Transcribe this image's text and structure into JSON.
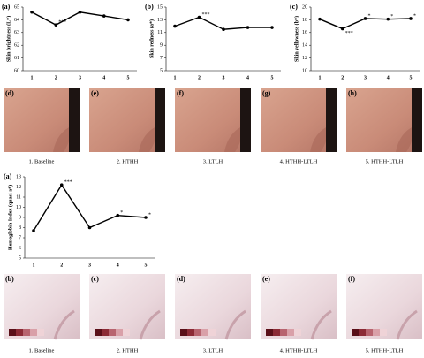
{
  "chart_data": [
    {
      "type": "line",
      "panel": "(a)",
      "ylabel": "Skin brightness (L*)",
      "categories": [
        "1",
        "2",
        "3",
        "4",
        "5"
      ],
      "values": [
        64.6,
        63.6,
        64.6,
        64.3,
        64.0
      ],
      "point_labels": [
        null,
        "***",
        null,
        null,
        null
      ],
      "ylim": [
        60,
        65
      ],
      "yticks": [
        60,
        61,
        62,
        63,
        64,
        65
      ],
      "color": "#000000"
    },
    {
      "type": "line",
      "panel": "(b)",
      "ylabel": "Skin redness (a*)",
      "categories": [
        "1",
        "2",
        "3",
        "4",
        "5"
      ],
      "values": [
        12.0,
        13.4,
        11.5,
        11.8,
        11.8
      ],
      "point_labels": [
        null,
        "***",
        null,
        null,
        null
      ],
      "ylim": [
        5,
        15
      ],
      "yticks": [
        5,
        7,
        9,
        11,
        13,
        15
      ],
      "color": "#000000"
    },
    {
      "type": "line",
      "panel": "(c)",
      "ylabel": "Skin yellowness (b*)",
      "categories": [
        "1",
        "2",
        "3",
        "4",
        "5"
      ],
      "values": [
        18.1,
        16.6,
        18.2,
        18.1,
        18.2
      ],
      "point_labels": [
        null,
        "***",
        "*",
        "*",
        "*"
      ],
      "ylim": [
        10,
        20
      ],
      "yticks": [
        10,
        12,
        14,
        16,
        18,
        20
      ],
      "color": "#000000"
    },
    {
      "type": "line",
      "panel": "(a)",
      "ylabel": "Hemoglobin Index (quasi a*)",
      "categories": [
        "1",
        "2",
        "3",
        "4",
        "5"
      ],
      "values": [
        7.7,
        12.2,
        8.0,
        9.2,
        9.0
      ],
      "point_labels": [
        null,
        "***",
        null,
        "*",
        "*"
      ],
      "ylim": [
        5,
        13
      ],
      "yticks": [
        5,
        6,
        7,
        8,
        9,
        10,
        11,
        12,
        13
      ],
      "color": "#000000"
    }
  ],
  "top_photos": {
    "labels": [
      "(d)",
      "(e)",
      "(f)",
      "(g)",
      "(h)"
    ],
    "captions": [
      "1. Baseline",
      "2. HTHH",
      "3. LTLH",
      "4. HTHH-LTLH",
      "5. HTHH-LTLH"
    ]
  },
  "bottom_photos": {
    "labels": [
      "(b)",
      "(c)",
      "(d)",
      "(e)",
      "(f)"
    ],
    "captions": [
      "1. Baseline",
      "2. HTHH",
      "3. LTLH",
      "4. HTHH-LTLH",
      "5. HTHH-LTLH"
    ]
  }
}
